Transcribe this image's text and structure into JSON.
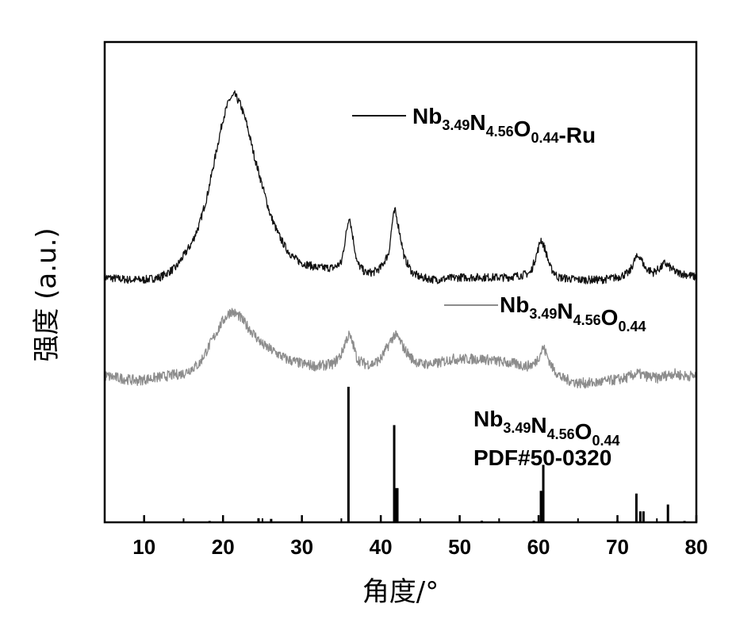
{
  "chart_data": {
    "type": "line",
    "title": "",
    "xlabel": "角度/°",
    "ylabel": "强度 (a.u.)",
    "xlim": [
      5,
      80
    ],
    "xticks": [
      10,
      20,
      30,
      40,
      50,
      60,
      70,
      80
    ],
    "ylim": [
      0,
      1
    ],
    "y_ticks_shown": false,
    "grid": false,
    "legend": "inline labels next to each trace",
    "series": [
      {
        "name": "Nb3.49N4.56O0.44-Ru",
        "name_parts": {
          "base": "Nb",
          "s1": "3.49",
          "n": "N",
          "s2": "4.56",
          "o": "O",
          "s3": "0.44",
          "suffix": "-Ru"
        },
        "color": "#111111",
        "baseline": 0.505,
        "points": [
          [
            5,
            0.51
          ],
          [
            8,
            0.505
          ],
          [
            10,
            0.505
          ],
          [
            12,
            0.51
          ],
          [
            14,
            0.53
          ],
          [
            16,
            0.58
          ],
          [
            17,
            0.62
          ],
          [
            18,
            0.68
          ],
          [
            19,
            0.76
          ],
          [
            20,
            0.84
          ],
          [
            20.8,
            0.88
          ],
          [
            21.5,
            0.89
          ],
          [
            22.2,
            0.87
          ],
          [
            23,
            0.83
          ],
          [
            24,
            0.76
          ],
          [
            25,
            0.7
          ],
          [
            26,
            0.64
          ],
          [
            27,
            0.6
          ],
          [
            28,
            0.57
          ],
          [
            29,
            0.55
          ],
          [
            30,
            0.54
          ],
          [
            31,
            0.535
          ],
          [
            32,
            0.53
          ],
          [
            33,
            0.53
          ],
          [
            34,
            0.53
          ],
          [
            35,
            0.54
          ],
          [
            35.6,
            0.6
          ],
          [
            36,
            0.64
          ],
          [
            36.5,
            0.59
          ],
          [
            37,
            0.54
          ],
          [
            38,
            0.52
          ],
          [
            39,
            0.52
          ],
          [
            40,
            0.53
          ],
          [
            41,
            0.56
          ],
          [
            41.5,
            0.63
          ],
          [
            41.8,
            0.65
          ],
          [
            42.2,
            0.62
          ],
          [
            43,
            0.55
          ],
          [
            44,
            0.52
          ],
          [
            45,
            0.51
          ],
          [
            47,
            0.505
          ],
          [
            50,
            0.51
          ],
          [
            53,
            0.51
          ],
          [
            56,
            0.51
          ],
          [
            58,
            0.515
          ],
          [
            59,
            0.52
          ],
          [
            59.8,
            0.56
          ],
          [
            60.3,
            0.59
          ],
          [
            60.8,
            0.57
          ],
          [
            61.5,
            0.53
          ],
          [
            62.5,
            0.51
          ],
          [
            65,
            0.505
          ],
          [
            68,
            0.505
          ],
          [
            70,
            0.51
          ],
          [
            71.5,
            0.52
          ],
          [
            72.3,
            0.55
          ],
          [
            72.8,
            0.555
          ],
          [
            73.5,
            0.53
          ],
          [
            74.5,
            0.52
          ],
          [
            75.5,
            0.53
          ],
          [
            76,
            0.54
          ],
          [
            76.7,
            0.53
          ],
          [
            77.5,
            0.52
          ],
          [
            79,
            0.515
          ],
          [
            80,
            0.51
          ]
        ]
      },
      {
        "name": "Nb3.49N4.56O0.44",
        "name_parts": {
          "base": "Nb",
          "s1": "3.49",
          "n": "N",
          "s2": "4.56",
          "o": "O",
          "s3": "0.44",
          "suffix": ""
        },
        "color": "#8c8c8c",
        "baseline": 0.31,
        "points": [
          [
            5,
            0.305
          ],
          [
            7,
            0.3
          ],
          [
            9,
            0.295
          ],
          [
            11,
            0.3
          ],
          [
            13,
            0.305
          ],
          [
            15,
            0.31
          ],
          [
            17,
            0.33
          ],
          [
            18,
            0.36
          ],
          [
            19,
            0.39
          ],
          [
            20,
            0.42
          ],
          [
            21,
            0.44
          ],
          [
            22,
            0.43
          ],
          [
            23,
            0.41
          ],
          [
            24,
            0.39
          ],
          [
            25,
            0.37
          ],
          [
            26,
            0.36
          ],
          [
            27,
            0.35
          ],
          [
            28,
            0.34
          ],
          [
            29,
            0.335
          ],
          [
            30,
            0.33
          ],
          [
            32,
            0.325
          ],
          [
            34,
            0.33
          ],
          [
            35,
            0.35
          ],
          [
            35.6,
            0.38
          ],
          [
            36,
            0.39
          ],
          [
            36.5,
            0.37
          ],
          [
            37,
            0.34
          ],
          [
            38,
            0.33
          ],
          [
            39,
            0.33
          ],
          [
            40,
            0.34
          ],
          [
            41,
            0.37
          ],
          [
            41.7,
            0.39
          ],
          [
            42.2,
            0.385
          ],
          [
            43,
            0.36
          ],
          [
            44,
            0.34
          ],
          [
            45,
            0.33
          ],
          [
            47,
            0.33
          ],
          [
            49,
            0.34
          ],
          [
            51,
            0.34
          ],
          [
            53,
            0.34
          ],
          [
            55,
            0.335
          ],
          [
            57,
            0.33
          ],
          [
            58.5,
            0.325
          ],
          [
            59.5,
            0.33
          ],
          [
            60.2,
            0.35
          ],
          [
            60.6,
            0.365
          ],
          [
            61,
            0.35
          ],
          [
            61.8,
            0.32
          ],
          [
            63,
            0.3
          ],
          [
            65,
            0.29
          ],
          [
            67,
            0.29
          ],
          [
            69,
            0.295
          ],
          [
            71,
            0.3
          ],
          [
            72.5,
            0.31
          ],
          [
            73.5,
            0.305
          ],
          [
            75,
            0.3
          ],
          [
            76,
            0.305
          ],
          [
            77,
            0.31
          ],
          [
            78.5,
            0.305
          ],
          [
            80,
            0.305
          ]
        ]
      }
    ],
    "reference_pattern": {
      "label_parts": {
        "base": "Nb",
        "s1": "3.49",
        "n": "N",
        "s2": "4.56",
        "o": "O",
        "s3": "0.44"
      },
      "card": "PDF#50-0320",
      "color": "#000000",
      "sticks": [
        [
          10.0,
          0.006
        ],
        [
          18.3,
          0.01
        ],
        [
          24.5,
          0.03
        ],
        [
          26.1,
          0.025
        ],
        [
          35.9,
          0.99
        ],
        [
          41.7,
          0.71
        ],
        [
          41.9,
          0.25
        ],
        [
          42.1,
          0.25
        ],
        [
          52.8,
          0.012
        ],
        [
          59.4,
          0.012
        ],
        [
          60.3,
          0.23
        ],
        [
          60.6,
          0.42
        ],
        [
          70.0,
          0.012
        ],
        [
          72.4,
          0.21
        ],
        [
          72.9,
          0.08
        ],
        [
          73.3,
          0.08
        ],
        [
          76.4,
          0.13
        ],
        [
          78.5,
          0.01
        ]
      ]
    }
  }
}
